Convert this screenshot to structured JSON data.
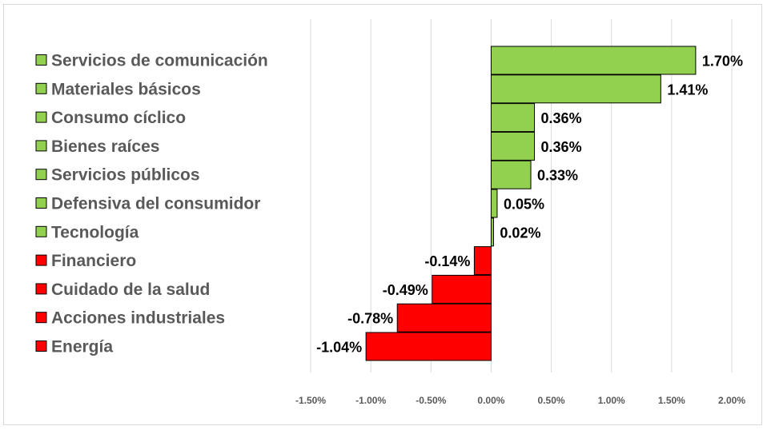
{
  "chart_data": {
    "type": "bar",
    "orientation": "horizontal",
    "title": "",
    "xlabel": "",
    "ylabel": "",
    "xlim": [
      -0.015,
      0.02
    ],
    "x_ticks": [
      -0.015,
      -0.01,
      -0.005,
      0,
      0.005,
      0.01,
      0.015,
      0.02
    ],
    "x_tick_labels": [
      "-1.50%",
      "-1.00%",
      "-0.50%",
      "0.00%",
      "0.50%",
      "1.00%",
      "1.50%",
      "2.00%"
    ],
    "grid": true,
    "legend_position": "left",
    "categories": [
      "Servicios de comunicación",
      "Materiales básicos",
      "Consumo cíclico",
      "Bienes raíces",
      "Servicios públicos",
      "Defensiva del consumidor",
      "Tecnología",
      "Financiero",
      "Cuidado de la salud",
      "Acciones industriales",
      "Energía"
    ],
    "values": [
      0.017,
      0.0141,
      0.0036,
      0.0036,
      0.0033,
      0.0005,
      0.0002,
      -0.0014,
      -0.0049,
      -0.0078,
      -0.0104
    ],
    "data_labels": [
      "1.70%",
      "1.41%",
      "0.36%",
      "0.36%",
      "0.33%",
      "0.05%",
      "0.02%",
      "-0.14%",
      "-0.49%",
      "-0.78%",
      "-1.04%"
    ],
    "colors": {
      "positive": "#92d050",
      "negative": "#ff0000",
      "bar_border": "#000000",
      "gridline": "#d9d9d9",
      "text": "#595959"
    }
  }
}
